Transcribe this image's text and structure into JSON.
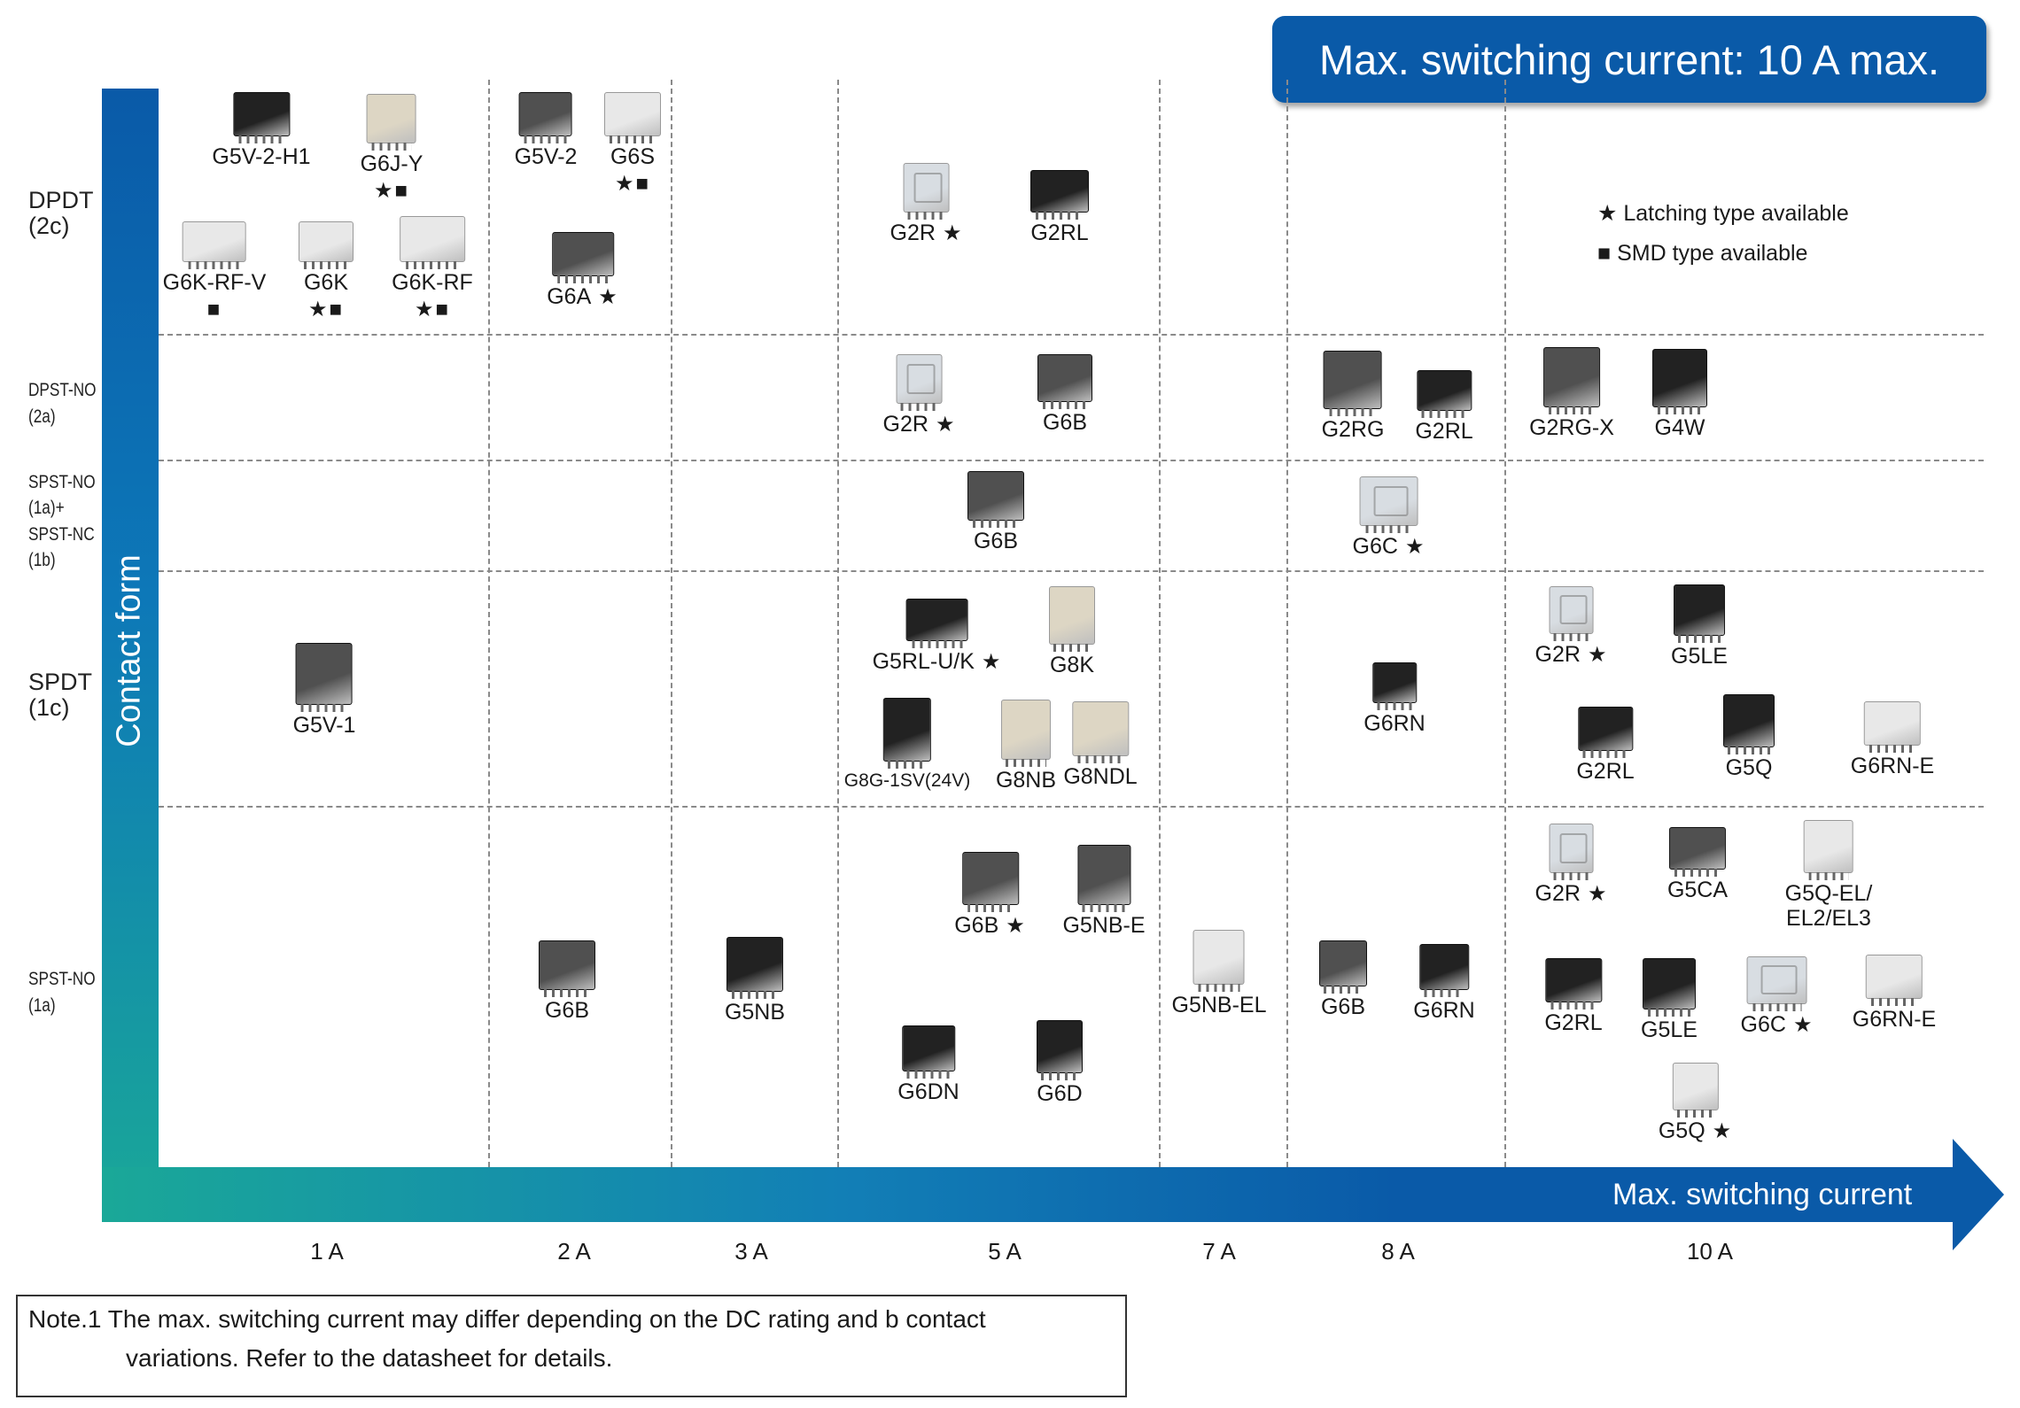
{
  "title": "Max. switching current: 10 A max.",
  "axes": {
    "y_label": "Contact form",
    "x_label": "Max. switching current"
  },
  "columns": [
    "1 A",
    "2 A",
    "3 A",
    "5 A",
    "7 A",
    "8 A",
    "10 A"
  ],
  "rows": [
    {
      "id": "dpdt",
      "line1": "DPDT",
      "line2": "(2c)"
    },
    {
      "id": "dpst-no",
      "line1": "DPST-NO",
      "line2": "(2a)"
    },
    {
      "id": "spst-no-nc",
      "line1": "SPST-NO",
      "line2": "(1a)+",
      "line3": "SPST-NC",
      "line4": "(1b)"
    },
    {
      "id": "spdt",
      "line1": "SPDT",
      "line2": "(1c)"
    },
    {
      "id": "spst-no",
      "line1": "SPST-NO",
      "line2": "(1a)"
    }
  ],
  "legend": {
    "latching": "Latching type available",
    "smd": "SMD type available"
  },
  "symbols": {
    "star": "★",
    "square": "■"
  },
  "note": {
    "line1": "Note.1 The max. switching current may differ depending on the DC rating and b contact",
    "line2": "variations. Refer to the datasheet for details."
  },
  "icon_colors": {
    "black": "#222222",
    "gray": "#505050",
    "white": "#e8e8e8",
    "beige": "#ddd6c4",
    "clear": "#d8dde2"
  },
  "products": [
    {
      "id": "g5v-2-h1",
      "name": "G5V-2-H1",
      "row": "dpdt",
      "column": "1 A",
      "color": "black",
      "latching": false,
      "smd": false
    },
    {
      "id": "g6j-y",
      "name": "G6J-Y",
      "row": "dpdt",
      "column": "1 A",
      "color": "beige",
      "latching": true,
      "smd": true
    },
    {
      "id": "g6k-rf-v",
      "name": "G6K-RF-V",
      "row": "dpdt",
      "column": "1 A",
      "color": "white",
      "latching": false,
      "smd": true
    },
    {
      "id": "g6k",
      "name": "G6K",
      "row": "dpdt",
      "column": "1 A",
      "color": "white",
      "latching": true,
      "smd": true
    },
    {
      "id": "g6k-rf",
      "name": "G6K-RF",
      "row": "dpdt",
      "column": "1 A",
      "color": "white",
      "latching": true,
      "smd": true
    },
    {
      "id": "g5v-2",
      "name": "G5V-2",
      "row": "dpdt",
      "column": "2 A",
      "color": "gray",
      "latching": false,
      "smd": false
    },
    {
      "id": "g6s",
      "name": "G6S",
      "row": "dpdt",
      "column": "2 A",
      "color": "white",
      "latching": true,
      "smd": true
    },
    {
      "id": "g6a",
      "name": "G6A",
      "row": "dpdt",
      "column": "2 A",
      "color": "gray",
      "latching": true,
      "smd": false
    },
    {
      "id": "g2r-dpdt",
      "name": "G2R",
      "row": "dpdt",
      "column": "5 A",
      "color": "clear",
      "latching": true,
      "smd": false
    },
    {
      "id": "g2rl-dpdt",
      "name": "G2RL",
      "row": "dpdt",
      "column": "5 A",
      "color": "black",
      "latching": false,
      "smd": false
    },
    {
      "id": "g2r-dpst",
      "name": "G2R",
      "row": "dpst-no",
      "column": "5 A",
      "color": "clear",
      "latching": true,
      "smd": false
    },
    {
      "id": "g6b-dpst",
      "name": "G6B",
      "row": "dpst-no",
      "column": "5 A",
      "color": "gray",
      "latching": false,
      "smd": false
    },
    {
      "id": "g2rg",
      "name": "G2RG",
      "row": "dpst-no",
      "column": "8 A",
      "color": "gray",
      "latching": false,
      "smd": false
    },
    {
      "id": "g2rl-dpst",
      "name": "G2RL",
      "row": "dpst-no",
      "column": "8 A",
      "color": "black",
      "latching": false,
      "smd": false
    },
    {
      "id": "g2rg-x",
      "name": "G2RG-X",
      "row": "dpst-no",
      "column": "10 A",
      "color": "gray",
      "latching": false,
      "smd": false
    },
    {
      "id": "g4w",
      "name": "G4W",
      "row": "dpst-no",
      "column": "10 A",
      "color": "black",
      "latching": false,
      "smd": false
    },
    {
      "id": "g6b-nonc",
      "name": "G6B",
      "row": "spst-no-nc",
      "column": "5 A",
      "color": "gray",
      "latching": false,
      "smd": false
    },
    {
      "id": "g6c-nonc",
      "name": "G6C",
      "row": "spst-no-nc",
      "column": "8 A",
      "color": "clear",
      "latching": true,
      "smd": false
    },
    {
      "id": "g5v-1",
      "name": "G5V-1",
      "row": "spdt",
      "column": "1 A",
      "color": "gray",
      "latching": false,
      "smd": false
    },
    {
      "id": "g5rl-uk",
      "name": "G5RL-U/K",
      "row": "spdt",
      "column": "5 A",
      "color": "black",
      "latching": true,
      "smd": false
    },
    {
      "id": "g8k",
      "name": "G8K",
      "row": "spdt",
      "column": "5 A",
      "color": "beige",
      "latching": false,
      "smd": false
    },
    {
      "id": "g8g-1sv",
      "name": "G8G-1SV(24V)",
      "row": "spdt",
      "column": "5 A",
      "color": "black",
      "latching": false,
      "smd": false
    },
    {
      "id": "g8nb",
      "name": "G8NB",
      "row": "spdt",
      "column": "5 A",
      "color": "beige",
      "latching": false,
      "smd": false
    },
    {
      "id": "g8ndl",
      "name": "G8NDL",
      "row": "spdt",
      "column": "5 A",
      "color": "beige",
      "latching": false,
      "smd": false
    },
    {
      "id": "g6rn-spdt",
      "name": "G6RN",
      "row": "spdt",
      "column": "8 A",
      "color": "black",
      "latching": false,
      "smd": false
    },
    {
      "id": "g2r-spdt",
      "name": "G2R",
      "row": "spdt",
      "column": "10 A",
      "color": "clear",
      "latching": true,
      "smd": false
    },
    {
      "id": "g5le-spdt",
      "name": "G5LE",
      "row": "spdt",
      "column": "10 A",
      "color": "black",
      "latching": false,
      "smd": false
    },
    {
      "id": "g2rl-spdt",
      "name": "G2RL",
      "row": "spdt",
      "column": "10 A",
      "color": "black",
      "latching": false,
      "smd": false
    },
    {
      "id": "g5q-spdt",
      "name": "G5Q",
      "row": "spdt",
      "column": "10 A",
      "color": "black",
      "latching": false,
      "smd": false
    },
    {
      "id": "g6rn-e-spdt",
      "name": "G6RN-E",
      "row": "spdt",
      "column": "10 A",
      "color": "white",
      "latching": false,
      "smd": false
    },
    {
      "id": "g6b-spst-2a",
      "name": "G6B",
      "row": "spst-no",
      "column": "2 A",
      "color": "gray",
      "latching": false,
      "smd": false
    },
    {
      "id": "g5nb",
      "name": "G5NB",
      "row": "spst-no",
      "column": "3 A",
      "color": "black",
      "latching": false,
      "smd": false
    },
    {
      "id": "g6b-spst-5a",
      "name": "G6B",
      "row": "spst-no",
      "column": "5 A",
      "color": "gray",
      "latching": true,
      "smd": false
    },
    {
      "id": "g5nb-e",
      "name": "G5NB-E",
      "row": "spst-no",
      "column": "5 A",
      "color": "gray",
      "latching": false,
      "smd": false
    },
    {
      "id": "g6dn",
      "name": "G6DN",
      "row": "spst-no",
      "column": "5 A",
      "color": "black",
      "latching": false,
      "smd": false
    },
    {
      "id": "g6d",
      "name": "G6D",
      "row": "spst-no",
      "column": "5 A",
      "color": "black",
      "latching": false,
      "smd": false
    },
    {
      "id": "g5nb-el",
      "name": "G5NB-EL",
      "row": "spst-no",
      "column": "7 A",
      "color": "white",
      "latching": false,
      "smd": false
    },
    {
      "id": "g6b-spst-8a",
      "name": "G6B",
      "row": "spst-no",
      "column": "8 A",
      "color": "gray",
      "latching": false,
      "smd": false
    },
    {
      "id": "g6rn-spst",
      "name": "G6RN",
      "row": "spst-no",
      "column": "8 A",
      "color": "black",
      "latching": false,
      "smd": false
    },
    {
      "id": "g2r-spst",
      "name": "G2R",
      "row": "spst-no",
      "column": "10 A",
      "color": "clear",
      "latching": true,
      "smd": false
    },
    {
      "id": "g5ca",
      "name": "G5CA",
      "row": "spst-no",
      "column": "10 A",
      "color": "gray",
      "latching": false,
      "smd": false
    },
    {
      "id": "g5q-el",
      "name": "G5Q-EL/",
      "name2": "EL2/EL3",
      "row": "spst-no",
      "column": "10 A",
      "color": "white",
      "latching": false,
      "smd": false
    },
    {
      "id": "g2rl-spst",
      "name": "G2RL",
      "row": "spst-no",
      "column": "10 A",
      "color": "black",
      "latching": false,
      "smd": false
    },
    {
      "id": "g5le-spst",
      "name": "G5LE",
      "row": "spst-no",
      "column": "10 A",
      "color": "black",
      "latching": false,
      "smd": false
    },
    {
      "id": "g6c-spst",
      "name": "G6C",
      "row": "spst-no",
      "column": "10 A",
      "color": "clear",
      "latching": true,
      "smd": false
    },
    {
      "id": "g6rn-e-spst",
      "name": "G6RN-E",
      "row": "spst-no",
      "column": "10 A",
      "color": "white",
      "latching": false,
      "smd": false
    },
    {
      "id": "g5q-spst",
      "name": "G5Q",
      "row": "spst-no",
      "column": "10 A",
      "color": "white",
      "latching": true,
      "smd": false
    }
  ]
}
